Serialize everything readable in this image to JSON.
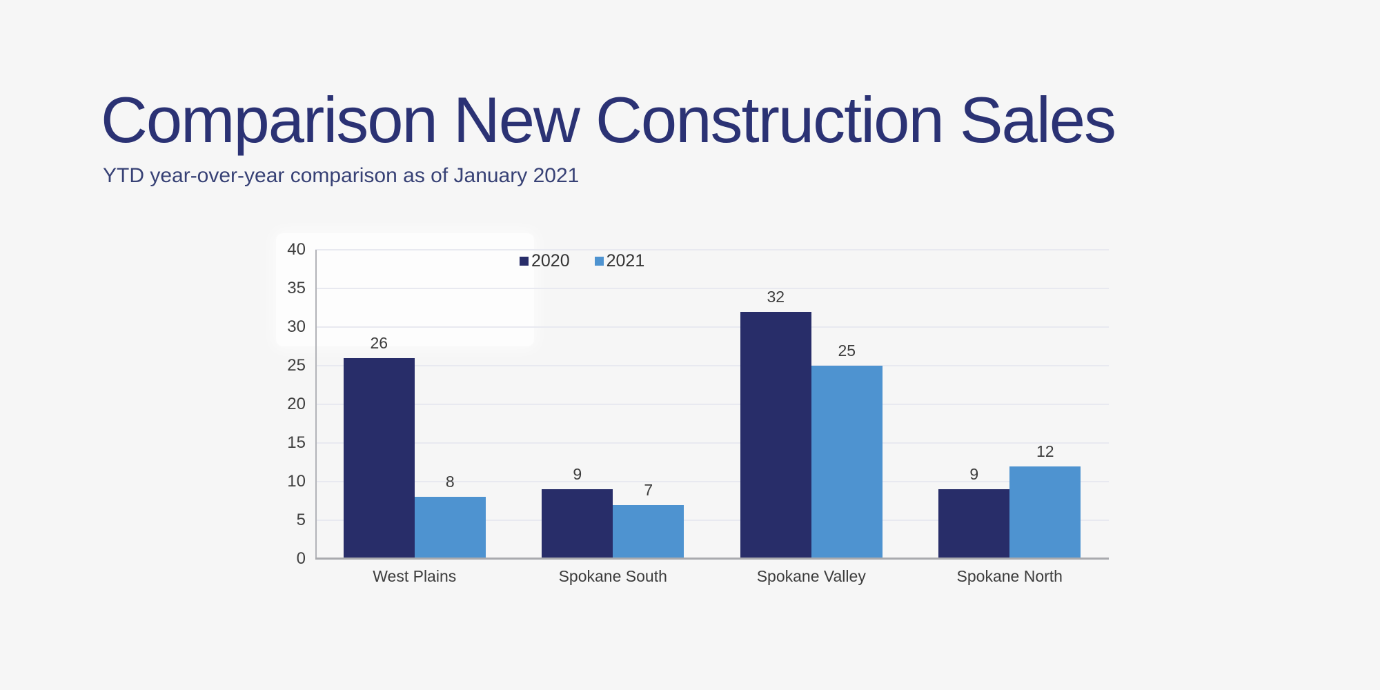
{
  "page": {
    "background_color": "#f6f6f6"
  },
  "header": {
    "title": "Comparison New Construction Sales",
    "subtitle": "YTD year-over-year comparison as of January 2021",
    "title_color": "#2b3274"
  },
  "chart_data": {
    "type": "bar",
    "title": "",
    "categories": [
      "West Plains",
      "Spokane South",
      "Spokane Valley",
      "Spokane North"
    ],
    "series": [
      {
        "name": "2020",
        "color": "#282d69",
        "values": [
          26,
          9,
          32,
          9
        ]
      },
      {
        "name": "2021",
        "color": "#4e93d0",
        "values": [
          8,
          7,
          25,
          12
        ]
      }
    ],
    "ylim": [
      0,
      40
    ],
    "yticks": [
      0,
      5,
      10,
      15,
      20,
      25,
      30,
      35,
      40
    ],
    "xlabel": "",
    "ylabel": "",
    "grid": "horizontal",
    "gridline_color": "#e8e9f0",
    "axis_line_color": "#b2b3b8",
    "baseline_color": "#a9aaae",
    "tick_label_color": "#3f3f3f",
    "data_label_color": "#3c3c3c",
    "legend_position": "top",
    "data_labels": true
  }
}
